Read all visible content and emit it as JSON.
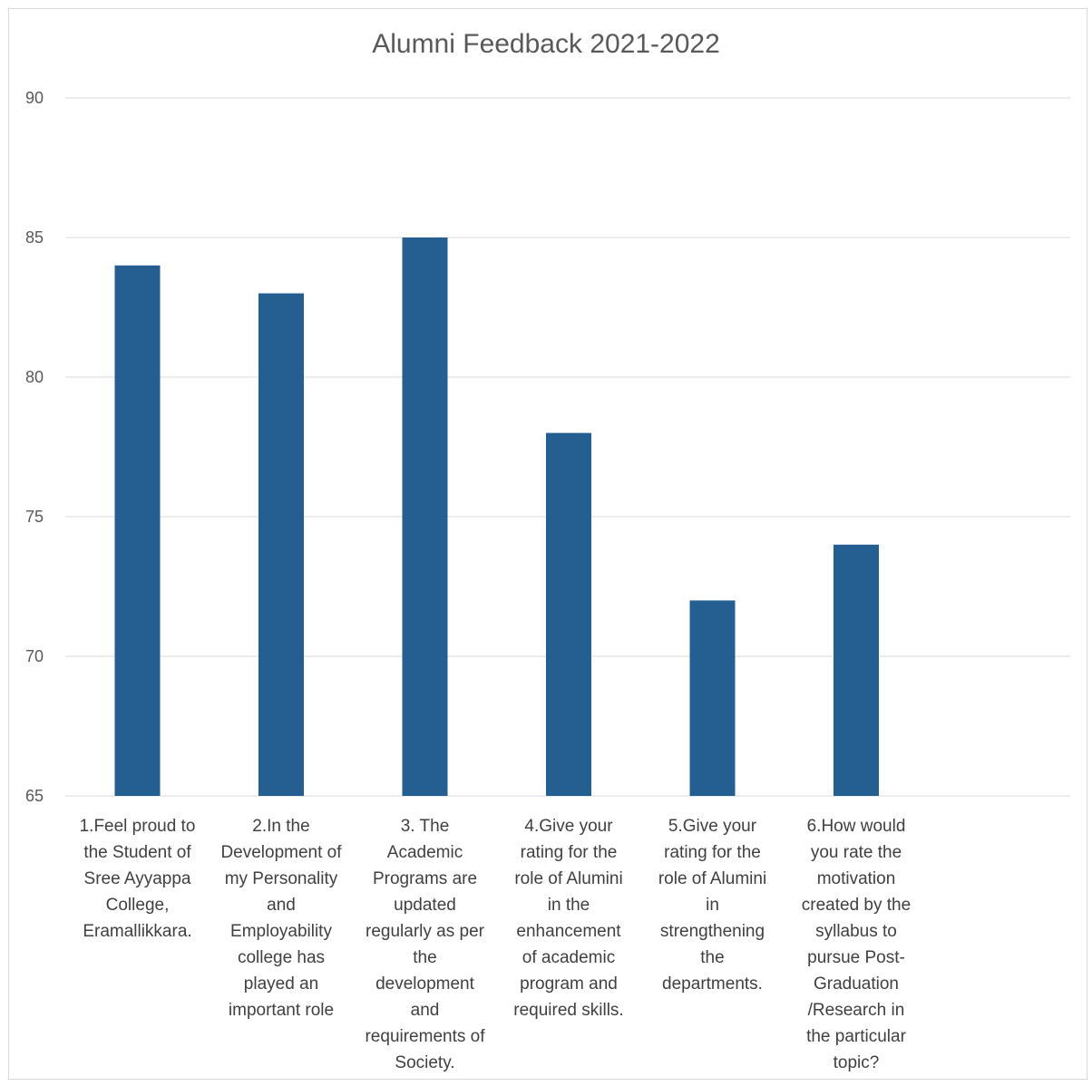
{
  "chart_data": {
    "type": "bar",
    "title": "Alumni Feedback 2021-2022",
    "xlabel": "",
    "ylabel": "",
    "ylim": [
      65,
      90
    ],
    "yticks": [
      65,
      70,
      75,
      80,
      85,
      90
    ],
    "grid": true,
    "legend": "none",
    "bar_color": "#255e91",
    "categories": [
      "1.Feel proud to the Student of Sree Ayyappa College, Eramallikkara.",
      "2.In the Development of my Personality and Employability college has played an important role",
      "3. The Academic Programs are updated regularly as per the development and requirements of Society.",
      "4.Give your rating for the role of Alumini in the enhancement of academic program and required skills.",
      "5.Give your rating for the role of Alumini in strengthening the departments.",
      "6.How would you rate the motivation created by the syllabus to pursue Post-Graduation /Research in the particular topic?"
    ],
    "category_lines": [
      [
        "1.Feel proud to",
        "the Student of",
        "Sree Ayyappa",
        "College,",
        "Eramallikkara."
      ],
      [
        "2.In the",
        "Development of",
        "my Personality",
        "and",
        "Employability",
        "college has",
        "played an",
        "important role"
      ],
      [
        "3. The",
        "Academic",
        "Programs are",
        "updated",
        "regularly as per",
        "the",
        "development",
        "and",
        "requirements of",
        "Society."
      ],
      [
        "4.Give your",
        "rating for the",
        "role of Alumini",
        "in the",
        "enhancement",
        "of academic",
        "program and",
        "required skills."
      ],
      [
        "5.Give your",
        "rating for the",
        "role of Alumini",
        "in",
        "strengthening",
        "the",
        "departments."
      ],
      [
        "6.How would",
        "you rate the",
        "motivation",
        "created by the",
        "syllabus to",
        "pursue Post-",
        "Graduation",
        "/Research in",
        "the particular",
        "topic?"
      ]
    ],
    "values": [
      84,
      83,
      85,
      78,
      72,
      74
    ]
  }
}
